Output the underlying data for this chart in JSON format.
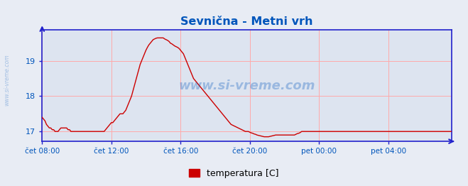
{
  "title": "Sevnična - Metni vrh",
  "line_color": "#cc0000",
  "bg_color": "#e8ecf4",
  "plot_bg_color": "#dde4f0",
  "grid_color": "#ffaaaa",
  "axis_color": "#2222cc",
  "text_color": "#0055bb",
  "watermark": "www.si-vreme.com",
  "legend_label": "temperatura [C]",
  "legend_color": "#cc0000",
  "ylim": [
    16.72,
    19.88
  ],
  "yticks": [
    17,
    18,
    19
  ],
  "xtick_labels": [
    "čet 08:00",
    "čet 12:00",
    "čet 16:00",
    "čet 20:00",
    "pet 00:00",
    "pet 04:00"
  ],
  "xtick_positions": [
    0,
    48,
    96,
    144,
    192,
    240
  ],
  "temperatures": [
    17.4,
    17.35,
    17.3,
    17.2,
    17.15,
    17.1,
    17.1,
    17.05,
    17.05,
    17.0,
    17.0,
    17.0,
    17.05,
    17.1,
    17.1,
    17.1,
    17.1,
    17.1,
    17.05,
    17.05,
    17.0,
    17.0,
    17.0,
    17.0,
    17.0,
    17.0,
    17.0,
    17.0,
    17.0,
    17.0,
    17.0,
    17.0,
    17.0,
    17.0,
    17.0,
    17.0,
    17.0,
    17.0,
    17.0,
    17.0,
    17.0,
    17.0,
    17.0,
    17.0,
    17.05,
    17.1,
    17.15,
    17.2,
    17.25,
    17.25,
    17.3,
    17.35,
    17.4,
    17.45,
    17.5,
    17.5,
    17.5,
    17.55,
    17.6,
    17.7,
    17.8,
    17.9,
    18.0,
    18.15,
    18.3,
    18.45,
    18.6,
    18.75,
    18.9,
    19.0,
    19.1,
    19.2,
    19.3,
    19.38,
    19.45,
    19.5,
    19.55,
    19.6,
    19.62,
    19.64,
    19.65,
    19.65,
    19.65,
    19.65,
    19.65,
    19.62,
    19.6,
    19.58,
    19.55,
    19.5,
    19.48,
    19.45,
    19.42,
    19.4,
    19.38,
    19.35,
    19.3,
    19.25,
    19.2,
    19.1,
    19.0,
    18.9,
    18.8,
    18.7,
    18.6,
    18.5,
    18.45,
    18.4,
    18.35,
    18.3,
    18.25,
    18.2,
    18.15,
    18.1,
    18.05,
    18.0,
    17.95,
    17.9,
    17.85,
    17.8,
    17.75,
    17.7,
    17.65,
    17.6,
    17.55,
    17.5,
    17.45,
    17.4,
    17.35,
    17.3,
    17.25,
    17.2,
    17.18,
    17.16,
    17.14,
    17.12,
    17.1,
    17.08,
    17.06,
    17.04,
    17.02,
    17.0,
    17.0,
    17.0,
    16.98,
    16.96,
    16.95,
    16.93,
    16.92,
    16.9,
    16.89,
    16.88,
    16.87,
    16.86,
    16.85,
    16.85,
    16.85,
    16.85,
    16.86,
    16.87,
    16.88,
    16.89,
    16.9,
    16.9,
    16.9,
    16.9,
    16.9,
    16.9,
    16.9,
    16.9,
    16.9,
    16.9,
    16.9,
    16.9,
    16.9,
    16.9,
    16.92,
    16.94,
    16.95,
    16.97,
    17.0,
    17.0,
    17.0,
    17.0,
    17.0,
    17.0,
    17.0,
    17.0,
    17.0,
    17.0,
    17.0,
    17.0,
    17.0,
    17.0,
    17.0,
    17.0,
    17.0,
    17.0,
    17.0,
    17.0,
    17.0,
    17.0,
    17.0,
    17.0,
    17.0,
    17.0,
    17.0,
    17.0,
    17.0,
    17.0,
    17.0,
    17.0,
    17.0,
    17.0,
    17.0,
    17.0,
    17.0,
    17.0,
    17.0,
    17.0,
    17.0,
    17.0,
    17.0,
    17.0,
    17.0,
    17.0,
    17.0,
    17.0,
    17.0,
    17.0,
    17.0,
    17.0,
    17.0,
    17.0,
    17.0,
    17.0,
    17.0,
    17.0,
    17.0,
    17.0,
    17.0,
    17.0,
    17.0,
    17.0,
    17.0,
    17.0,
    17.0,
    17.0,
    17.0,
    17.0,
    17.0,
    17.0,
    17.0,
    17.0,
    17.0,
    17.0,
    17.0,
    17.0,
    17.0,
    17.0,
    17.0,
    17.0,
    17.0,
    17.0,
    17.0,
    17.0,
    17.0,
    17.0,
    17.0,
    17.0,
    17.0,
    17.0,
    17.0,
    17.0,
    17.0,
    17.0,
    17.0,
    17.0,
    17.0,
    17.0,
    17.0,
    17.0,
    17.0,
    17.0,
    17.0
  ]
}
